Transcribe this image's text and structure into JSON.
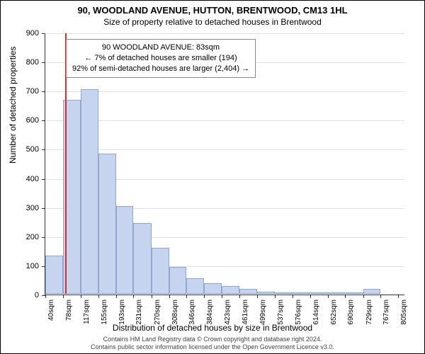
{
  "title": "90, WOODLAND AVENUE, HUTTON, BRENTWOOD, CM13 1HL",
  "subtitle": "Size of property relative to detached houses in Brentwood",
  "ylabel": "Number of detached properties",
  "xlabel": "Distribution of detached houses by size in Brentwood",
  "chart": {
    "type": "histogram",
    "background_color": "#ffffff",
    "grid_color": "#e0e0e0",
    "bar_fill": "#c6d4ef",
    "bar_border": "#90a8d0",
    "marker_color": "#d03030",
    "marker_x": 83,
    "ylim": [
      0,
      900
    ],
    "ytick_step": 100,
    "yticks": [
      0,
      100,
      200,
      300,
      400,
      500,
      600,
      700,
      800,
      900
    ],
    "xtick_labels": [
      "40sqm",
      "78sqm",
      "117sqm",
      "155sqm",
      "193sqm",
      "231sqm",
      "270sqm",
      "308sqm",
      "346sqm",
      "384sqm",
      "423sqm",
      "461sqm",
      "499sqm",
      "537sqm",
      "576sqm",
      "614sqm",
      "652sqm",
      "690sqm",
      "729sqm",
      "767sqm",
      "805sqm"
    ],
    "xtick_values": [
      40,
      78,
      117,
      155,
      193,
      231,
      270,
      308,
      346,
      384,
      423,
      461,
      499,
      537,
      576,
      614,
      652,
      690,
      729,
      767,
      805
    ],
    "x_range": [
      40,
      820
    ],
    "bars": [
      {
        "x0": 40,
        "x1": 78,
        "value": 135
      },
      {
        "x0": 78,
        "x1": 117,
        "value": 670
      },
      {
        "x0": 117,
        "x1": 155,
        "value": 705
      },
      {
        "x0": 155,
        "x1": 193,
        "value": 485
      },
      {
        "x0": 193,
        "x1": 231,
        "value": 305
      },
      {
        "x0": 231,
        "x1": 270,
        "value": 245
      },
      {
        "x0": 270,
        "x1": 308,
        "value": 160
      },
      {
        "x0": 308,
        "x1": 346,
        "value": 95
      },
      {
        "x0": 346,
        "x1": 384,
        "value": 55
      },
      {
        "x0": 384,
        "x1": 423,
        "value": 40
      },
      {
        "x0": 423,
        "x1": 461,
        "value": 30
      },
      {
        "x0": 461,
        "x1": 499,
        "value": 20
      },
      {
        "x0": 499,
        "x1": 537,
        "value": 10
      },
      {
        "x0": 537,
        "x1": 576,
        "value": 8
      },
      {
        "x0": 576,
        "x1": 614,
        "value": 6
      },
      {
        "x0": 614,
        "x1": 652,
        "value": 5
      },
      {
        "x0": 652,
        "x1": 690,
        "value": 4
      },
      {
        "x0": 690,
        "x1": 729,
        "value": 3
      },
      {
        "x0": 729,
        "x1": 767,
        "value": 20
      },
      {
        "x0": 767,
        "x1": 805,
        "value": 0
      }
    ]
  },
  "info_box": {
    "line1": "90 WOODLAND AVENUE: 83sqm",
    "line2": "← 7% of detached houses are smaller (194)",
    "line3": "92% of semi-detached houses are larger (2,404) →"
  },
  "footer": {
    "line1": "Contains HM Land Registry data © Crown copyright and database right 2024.",
    "line2": "Contains public sector information licensed under the Open Government Licence v3.0."
  }
}
